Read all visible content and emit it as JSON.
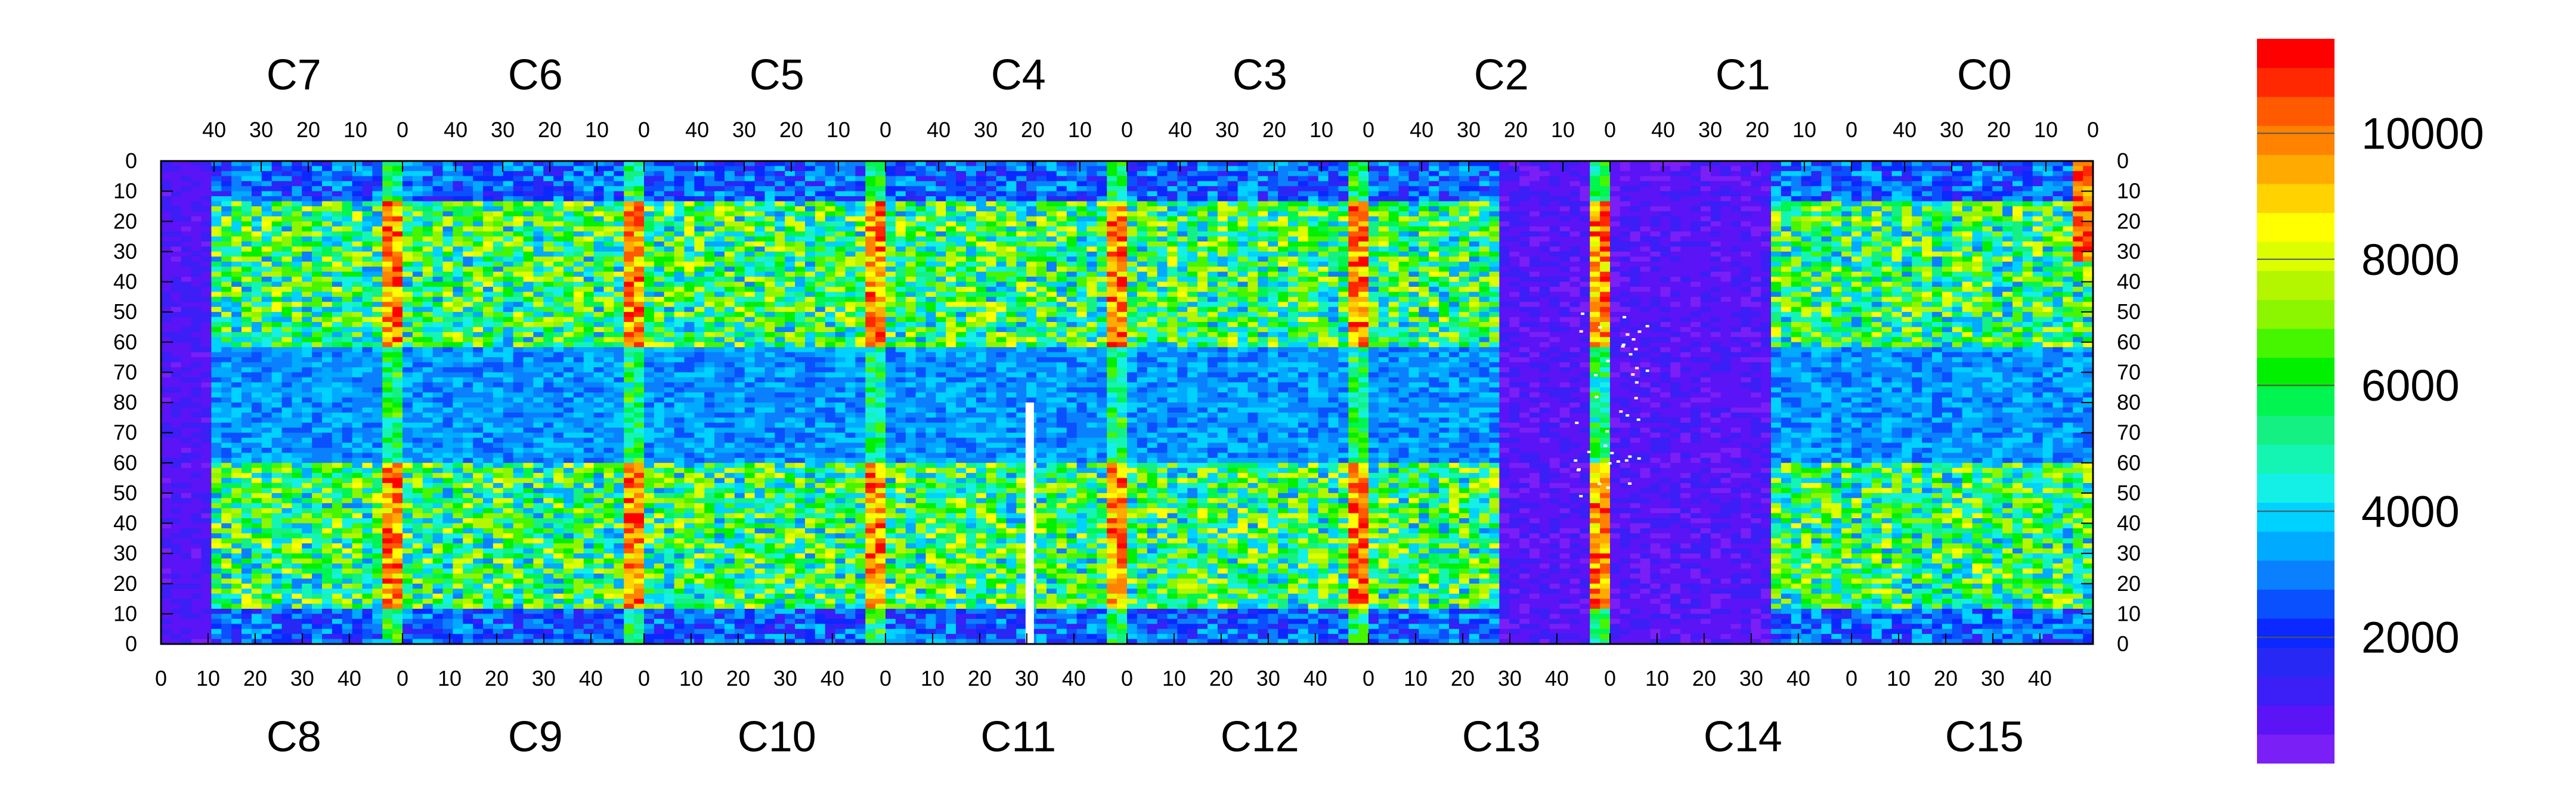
{
  "chart_data": {
    "type": "heatmap",
    "title": "",
    "top_column_labels": [
      "C7",
      "C6",
      "C5",
      "C4",
      "C3",
      "C2",
      "C1",
      "C0"
    ],
    "bottom_column_labels": [
      "C8",
      "C9",
      "C10",
      "C11",
      "C12",
      "C13",
      "C14",
      "C15"
    ],
    "top_x_ticks": [
      "40",
      "30",
      "20",
      "10",
      "0"
    ],
    "bottom_x_ticks": [
      "0",
      "10",
      "20",
      "30",
      "40"
    ],
    "y_ticks_top_half": [
      "0",
      "10",
      "20",
      "30",
      "40",
      "50",
      "60",
      "70",
      "80"
    ],
    "y_ticks_bottom_half": [
      "70",
      "60",
      "50",
      "40",
      "30",
      "20",
      "10",
      "0"
    ],
    "colorbar": {
      "range": [
        0,
        11500
      ],
      "ticks": [
        2000,
        4000,
        6000,
        8000,
        10000
      ],
      "tick_labels": [
        "2000",
        "4000",
        "6000",
        "8000",
        "10000"
      ],
      "colors": [
        "#7a1ff5",
        "#5a14f5",
        "#3c1ef7",
        "#2828f5",
        "#0a28ff",
        "#0a50ff",
        "#0a80ff",
        "#00aaff",
        "#00d2ff",
        "#14f0e6",
        "#14f5b4",
        "#14f082",
        "#00f550",
        "#00f000",
        "#46f500",
        "#8cf500",
        "#b4f500",
        "#dcff00",
        "#ffff00",
        "#ffd200",
        "#ffaa00",
        "#ff8200",
        "#ff5a00",
        "#ff2800",
        "#ff0000"
      ]
    },
    "description_values": {
      "column_bands": "High-value stripes near x=0 of each chip column (C7/C8..C2/C13), mostly red/yellow around rows 20-60",
      "low_regions": "C13/C14 and C1/C2 center largely low (blue/purple)"
    }
  },
  "colors": {
    "background": "#ffffff",
    "frame": "#000000"
  }
}
